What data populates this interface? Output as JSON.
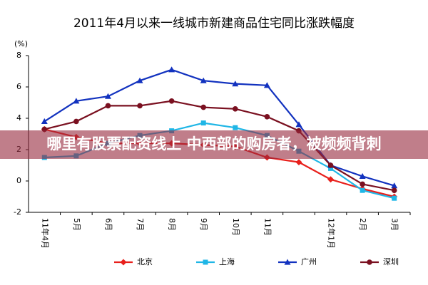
{
  "chart_data": {
    "type": "line",
    "title": "2011年4月以来一线城市新建商品住宅同比涨跌幅度",
    "y_label": "(%)",
    "categories": [
      "11年4月",
      "5月",
      "6月",
      "7月",
      "8月",
      "9月",
      "10月",
      "11月",
      null,
      "12年1月",
      "2月",
      "3月"
    ],
    "series": [
      {
        "name": "北京",
        "color": "#e8201c",
        "marker": "diamond",
        "values": [
          3.3,
          2.8,
          2.4,
          2.4,
          2.4,
          2.3,
          2.2,
          1.5,
          1.2,
          0.1,
          -0.5,
          -1.0
        ]
      },
      {
        "name": "上海",
        "color": "#1fb6e6",
        "marker": "square",
        "values": [
          1.5,
          1.6,
          2.4,
          2.9,
          3.2,
          3.7,
          3.4,
          2.9,
          1.9,
          0.8,
          -0.6,
          -1.1
        ]
      },
      {
        "name": "广州",
        "color": "#1232bf",
        "marker": "triangle",
        "values": [
          3.8,
          5.1,
          5.4,
          6.4,
          7.1,
          6.4,
          6.2,
          6.1,
          3.6,
          1.0,
          0.3,
          -0.3
        ]
      },
      {
        "name": "深圳",
        "color": "#7a1020",
        "marker": "circle",
        "values": [
          3.3,
          3.8,
          4.8,
          4.8,
          5.1,
          4.7,
          4.6,
          4.1,
          3.2,
          1.0,
          -0.2,
          -0.6
        ]
      }
    ],
    "ylim": [
      -2,
      8
    ],
    "yticks": [
      -2,
      0,
      2,
      4,
      6,
      8
    ],
    "grid": false,
    "legend": "bottom",
    "overlay_text": "哪里有股票配资线上 中西部的购房者，被频频背刺"
  }
}
